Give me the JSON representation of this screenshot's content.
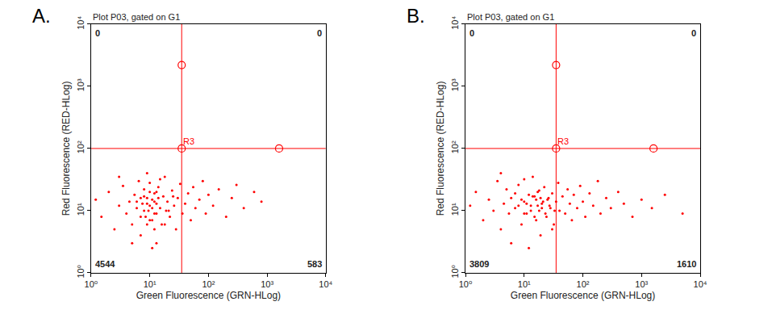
{
  "chart_data": [
    {
      "type": "scatter",
      "panel": "A.",
      "title": "Plot P03, gated on G1",
      "x_label": "Green Fluorescence (GRN-HLog)",
      "y_label": "Red Fluorescence (RED-HLog)",
      "log": true,
      "grid": false,
      "color": "#ff0000",
      "marker": "dot",
      "xlim": [
        1,
        10000
      ],
      "ylim": [
        1,
        10000
      ],
      "xticks": [
        {
          "value": 1,
          "label": "10⁰"
        },
        {
          "value": 10,
          "label": "10¹"
        },
        {
          "value": 100,
          "label": "10²"
        },
        {
          "value": 1000,
          "label": "10³"
        },
        {
          "value": 10000,
          "label": "10⁴"
        }
      ],
      "yticks": [
        {
          "value": 1,
          "label": "10⁰"
        },
        {
          "value": 10,
          "label": "10¹"
        },
        {
          "value": 100,
          "label": "10²"
        },
        {
          "value": 1000,
          "label": "10³"
        },
        {
          "value": 10000,
          "label": "10⁴"
        }
      ],
      "x": [
        1.2,
        1.5,
        2,
        2.5,
        3,
        3.5,
        4,
        4.5,
        5,
        5.5,
        6,
        6.5,
        7,
        7.5,
        8,
        8.5,
        9,
        9.5,
        10,
        10,
        11,
        11,
        12,
        12,
        13,
        13,
        14,
        15,
        16,
        17,
        18,
        19,
        20,
        22,
        24,
        26,
        28,
        30,
        33,
        36,
        40,
        45,
        50,
        55,
        60,
        70,
        80,
        90,
        100,
        120,
        150,
        200,
        250,
        300,
        400,
        600,
        800,
        3,
        5,
        7,
        9,
        11,
        13,
        15,
        18,
        21,
        25,
        6,
        8,
        10,
        12,
        14,
        9,
        10,
        11,
        8,
        12,
        7,
        9,
        13
      ],
      "y": [
        15,
        8,
        20,
        5,
        12,
        25,
        9,
        14,
        6,
        18,
        11,
        30,
        4,
        13,
        22,
        8,
        16,
        10,
        12,
        28,
        7,
        15,
        19,
        9,
        13,
        3,
        24,
        11,
        6,
        17,
        35,
        10,
        14,
        8,
        21,
        12,
        5,
        16,
        27,
        9,
        13,
        19,
        7,
        24,
        11,
        15,
        30,
        9,
        18,
        12,
        22,
        8,
        16,
        26,
        11,
        20,
        14,
        35,
        3,
        8,
        40,
        2.5,
        20,
        32,
        6,
        10,
        17,
        14,
        10,
        7,
        14,
        16,
        13,
        20,
        11,
        17,
        5,
        16,
        6,
        9
      ],
      "gate": {
        "label": "R3",
        "x": 35,
        "y": 100,
        "handles": {
          "x": [
            35,
            35,
            1600
          ],
          "y": [
            2200,
            100,
            100
          ]
        }
      },
      "quadrant_counts": {
        "upper_left": 0,
        "upper_right": 0,
        "lower_left": 4544,
        "lower_right": 583
      }
    },
    {
      "type": "scatter",
      "panel": "B.",
      "title": "Plot P03, gated on G1",
      "x_label": "Green Fluorescence (GRN-HLog)",
      "y_label": "Red Fluorescence (RED-HLog)",
      "log": true,
      "grid": false,
      "color": "#ff0000",
      "marker": "dot",
      "xlim": [
        1,
        10000
      ],
      "ylim": [
        1,
        10000
      ],
      "xticks": [
        {
          "value": 1,
          "label": "10⁰"
        },
        {
          "value": 10,
          "label": "10¹"
        },
        {
          "value": 100,
          "label": "10²"
        },
        {
          "value": 1000,
          "label": "10³"
        },
        {
          "value": 10000,
          "label": "10⁴"
        }
      ],
      "yticks": [
        {
          "value": 1,
          "label": "10⁰"
        },
        {
          "value": 10,
          "label": "10¹"
        },
        {
          "value": 100,
          "label": "10²"
        },
        {
          "value": 1000,
          "label": "10³"
        },
        {
          "value": 10000,
          "label": "10⁴"
        }
      ],
      "x": [
        1.2,
        1.5,
        2,
        2.5,
        3,
        3.5,
        4,
        4.5,
        5,
        5.5,
        6,
        7,
        8,
        9,
        10,
        11,
        12,
        13,
        14,
        15,
        16,
        17,
        18,
        19,
        20,
        22,
        24,
        26,
        28,
        30,
        32,
        35,
        38,
        40,
        45,
        50,
        55,
        60,
        65,
        70,
        80,
        90,
        100,
        110,
        130,
        150,
        180,
        200,
        250,
        300,
        400,
        500,
        700,
        1000,
        1500,
        2500,
        5000,
        4,
        6,
        8,
        10,
        12,
        14,
        16,
        18,
        20,
        25,
        30,
        9,
        11,
        13,
        15,
        17,
        21,
        23,
        27,
        33,
        7,
        10,
        19
      ],
      "y": [
        12,
        20,
        7,
        15,
        10,
        30,
        5,
        13,
        22,
        9,
        16,
        11,
        26,
        6,
        14,
        9,
        18,
        12,
        35,
        8,
        15,
        20,
        10,
        4,
        13,
        24,
        8,
        16,
        11,
        19,
        6,
        14,
        28,
        10,
        17,
        9,
        22,
        13,
        7,
        18,
        11,
        25,
        14,
        8,
        19,
        12,
        30,
        9,
        16,
        11,
        20,
        13,
        8,
        15,
        11,
        18,
        9,
        40,
        3,
        12,
        32,
        2.5,
        17,
        7,
        21,
        11,
        15,
        5,
        15,
        13,
        10,
        17,
        12,
        14,
        9,
        12,
        10,
        19,
        9,
        16
      ],
      "gate": {
        "label": "R3",
        "x": 35,
        "y": 100,
        "handles": {
          "x": [
            35,
            35,
            1600
          ],
          "y": [
            2200,
            100,
            100
          ]
        }
      },
      "quadrant_counts": {
        "upper_left": 0,
        "upper_right": 0,
        "lower_left": 3809,
        "lower_right": 1610
      }
    }
  ]
}
